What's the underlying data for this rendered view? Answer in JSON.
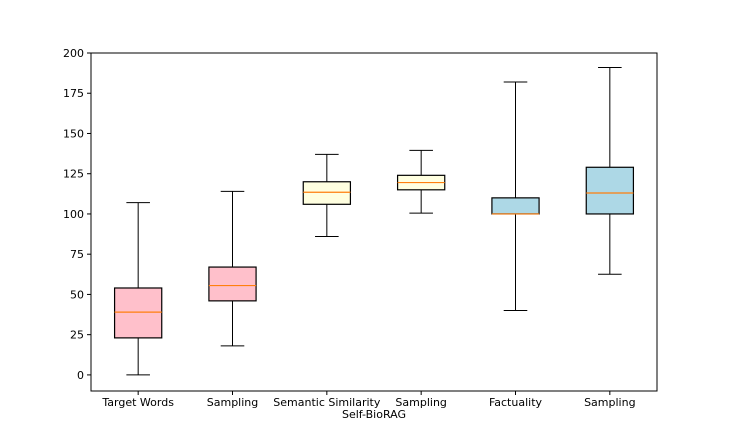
{
  "chart_data": {
    "type": "box",
    "title": "",
    "xlabel": "Self-BioRAG",
    "ylabel": "",
    "ylim": [
      -10,
      200
    ],
    "yticks": [
      0,
      25,
      50,
      75,
      100,
      125,
      150,
      175,
      200
    ],
    "categories": [
      "Target Words",
      "Sampling",
      "Semantic Similarity",
      "Sampling",
      "Factuality",
      "Sampling"
    ],
    "boxes": [
      {
        "label": "Target Words",
        "whisker_low": 0,
        "q1": 23,
        "median": 39,
        "q3": 54,
        "whisker_high": 107,
        "color": "#ffc0cb"
      },
      {
        "label": "Sampling",
        "whisker_low": 18,
        "q1": 46,
        "median": 55.5,
        "q3": 67,
        "whisker_high": 114,
        "color": "#ffc0cb"
      },
      {
        "label": "Semantic Similarity",
        "whisker_low": 86,
        "q1": 106,
        "median": 113.5,
        "q3": 120,
        "whisker_high": 137,
        "color": "#ffffe0"
      },
      {
        "label": "Sampling",
        "whisker_low": 100.5,
        "q1": 115,
        "median": 119.5,
        "q3": 124,
        "whisker_high": 139.5,
        "color": "#ffffe0"
      },
      {
        "label": "Factuality",
        "whisker_low": 40,
        "q1": 100,
        "median": 100,
        "q3": 110,
        "whisker_high": 182,
        "color": "#add8e6"
      },
      {
        "label": "Sampling",
        "whisker_low": 62.5,
        "q1": 100,
        "median": 113,
        "q3": 129,
        "whisker_high": 191,
        "color": "#add8e6"
      }
    ],
    "median_color": "#ff7f0e",
    "grid": false,
    "legend": "none"
  }
}
